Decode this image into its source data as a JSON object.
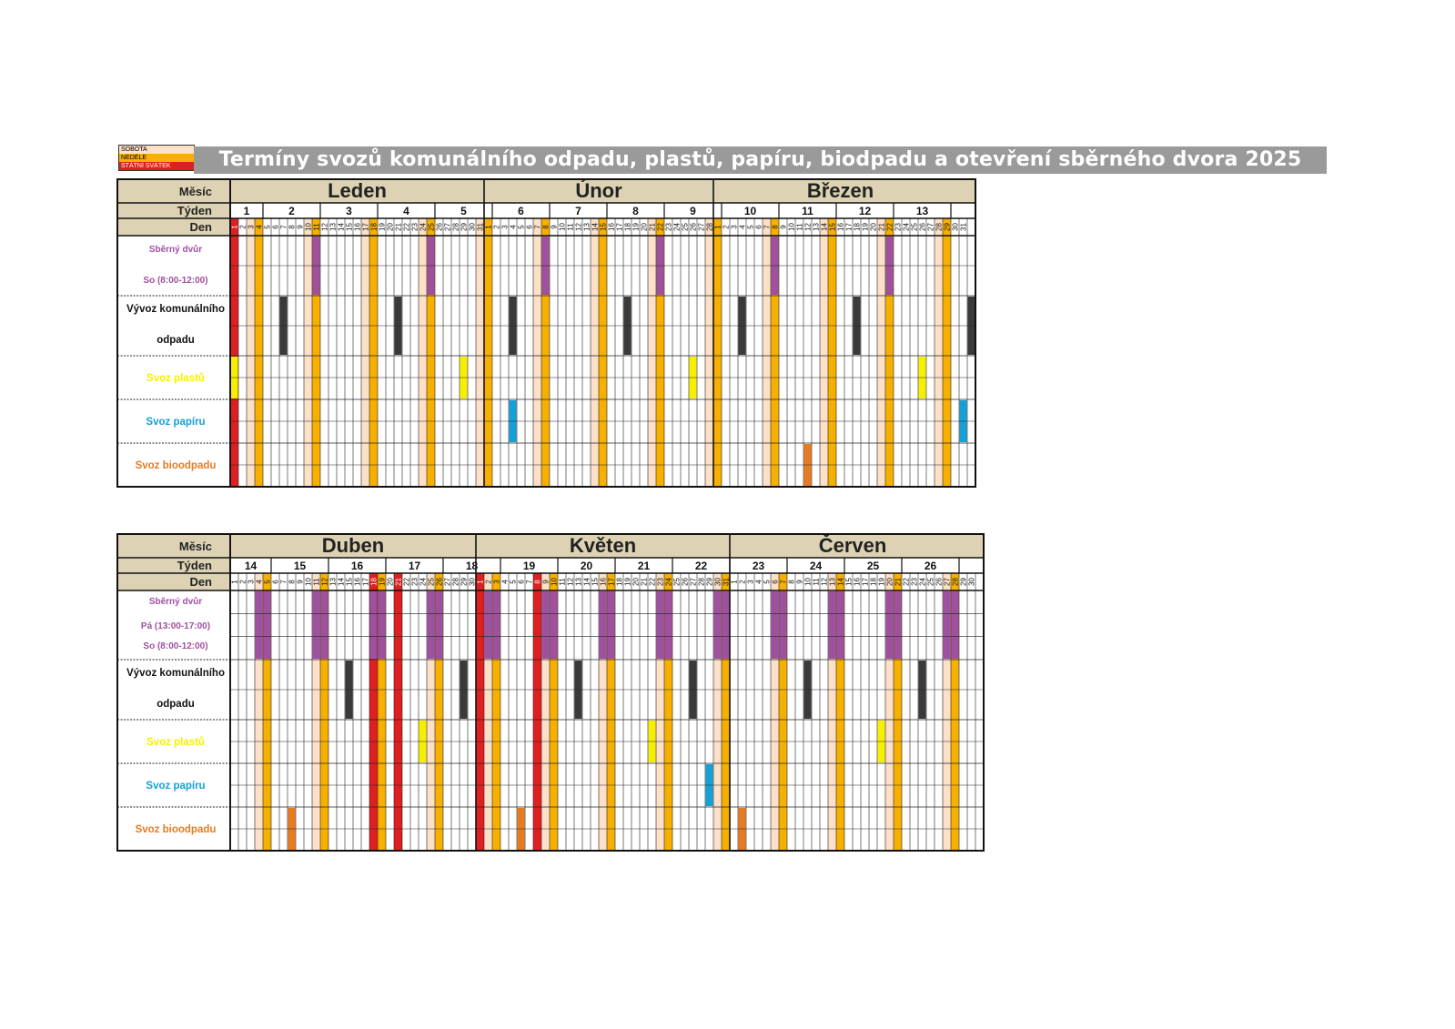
{
  "title": "Termíny svozů komunálního odpadu, plastů, papíru, biodpadu a otevření sběrného dvora 2025",
  "legend": [
    {
      "label": "SOBOTA",
      "color": "#fce0c8",
      "text_color": "#000000"
    },
    {
      "label": "NEDĚLE",
      "color": "#f7b000",
      "text_color": "#000000"
    },
    {
      "label": "STÁTNÍ SVÁTEK",
      "color": "#e02020",
      "text_color": "#ffffff"
    }
  ],
  "colors": {
    "saturday": "#fce0c8",
    "sunday": "#f7b000",
    "holiday": "#e02020",
    "header_bg": "#ddd3b4",
    "sberny_dvur": "#a050a0",
    "komunal": "#3a3a3a",
    "plasty": "#f7ef00",
    "papir": "#16a0d8",
    "bioodpad": "#e87a20"
  },
  "header_labels": {
    "month": "Měsíc",
    "week": "Týden",
    "day": "Den"
  },
  "blocks": [
    {
      "months": [
        {
          "name": "Leden",
          "days": 31,
          "first_weekday": 3,
          "holidays": [
            1
          ]
        },
        {
          "name": "Únor",
          "days": 28,
          "first_weekday": 6,
          "holidays": []
        },
        {
          "name": "Březen",
          "days": 31,
          "first_weekday": 6,
          "holidays": []
        }
      ],
      "weeks": [
        "1",
        "2",
        "3",
        "4",
        "5",
        "6",
        "7",
        "8",
        "9",
        "10",
        "11",
        "12",
        "13",
        ""
      ],
      "rows": [
        {
          "id": "sberny_dvur",
          "label_lines": [
            "Sběrný dvůr",
            "So (8:00-12:00)"
          ],
          "label_color": "#a050a0",
          "height": 66,
          "cells": [
            [
              0,
              11
            ],
            [
              0,
              25
            ],
            [
              1,
              8
            ],
            [
              1,
              22
            ],
            [
              2,
              8
            ],
            [
              2,
              22
            ]
          ]
        },
        {
          "id": "komunal",
          "label_lines": [
            "Vývoz komunálního",
            "odpadu"
          ],
          "label_color": "#111111",
          "height": 66,
          "cells": [
            [
              0,
              7
            ],
            [
              0,
              21
            ],
            [
              1,
              4
            ],
            [
              1,
              18
            ],
            [
              2,
              4
            ],
            [
              2,
              18
            ]
          ],
          "last_col_mark": true
        },
        {
          "id": "plasty",
          "label_lines": [
            "Svoz plastů"
          ],
          "label_color": "#f7ef00",
          "height": 48,
          "cells": [
            [
              0,
              1
            ],
            [
              0,
              29
            ],
            [
              1,
              26
            ],
            [
              2,
              26
            ]
          ]
        },
        {
          "id": "papir",
          "label_lines": [
            "Svoz papíru"
          ],
          "label_color": "#16a0d8",
          "height": 48,
          "cells": [
            [
              1,
              4
            ],
            [
              2,
              31
            ]
          ]
        },
        {
          "id": "bioodpad",
          "label_lines": [
            "Svoz bioodpadu"
          ],
          "label_color": "#e87a20",
          "height": 48,
          "cells": [
            [
              2,
              12
            ]
          ]
        }
      ]
    },
    {
      "months": [
        {
          "name": "Duben",
          "days": 30,
          "first_weekday": 2,
          "holidays": [
            18,
            21
          ]
        },
        {
          "name": "Květen",
          "days": 31,
          "first_weekday": 4,
          "holidays": [
            1,
            8
          ]
        },
        {
          "name": "Červen",
          "days": 30,
          "first_weekday": 0,
          "holidays": []
        }
      ],
      "weeks": [
        "14",
        "15",
        "16",
        "17",
        "18",
        "19",
        "20",
        "21",
        "22",
        "23",
        "24",
        "25",
        "26",
        ""
      ],
      "rows": [
        {
          "id": "sberny_dvur",
          "label_lines": [
            "Sběrný dvůr",
            "Pá (13:00-17:00)",
            "So (8:00-12:00)"
          ],
          "label_color": "#a050a0",
          "height": 76,
          "cells": [
            [
              0,
              4
            ],
            [
              0,
              5
            ],
            [
              0,
              11
            ],
            [
              0,
              12
            ],
            [
              0,
              18
            ],
            [
              0,
              19
            ],
            [
              0,
              25
            ],
            [
              0,
              26
            ],
            [
              1,
              2
            ],
            [
              1,
              3
            ],
            [
              1,
              9
            ],
            [
              1,
              10
            ],
            [
              1,
              16
            ],
            [
              1,
              17
            ],
            [
              1,
              23
            ],
            [
              1,
              24
            ],
            [
              1,
              30
            ],
            [
              1,
              31
            ],
            [
              2,
              6
            ],
            [
              2,
              7
            ],
            [
              2,
              13
            ],
            [
              2,
              14
            ],
            [
              2,
              20
            ],
            [
              2,
              21
            ],
            [
              2,
              27
            ],
            [
              2,
              28
            ]
          ]
        },
        {
          "id": "komunal",
          "label_lines": [
            "Vývoz komunálního",
            "odpadu"
          ],
          "label_color": "#111111",
          "height": 66,
          "cells": [
            [
              0,
              15
            ],
            [
              0,
              29
            ],
            [
              1,
              13
            ],
            [
              1,
              27
            ],
            [
              2,
              10
            ],
            [
              2,
              24
            ]
          ]
        },
        {
          "id": "plasty",
          "label_lines": [
            "Svoz plastů"
          ],
          "label_color": "#f7ef00",
          "height": 48,
          "cells": [
            [
              0,
              24
            ],
            [
              1,
              22
            ],
            [
              2,
              19
            ]
          ]
        },
        {
          "id": "papir",
          "label_lines": [
            "Svoz papíru"
          ],
          "label_color": "#16a0d8",
          "height": 48,
          "cells": [
            [
              1,
              29
            ]
          ]
        },
        {
          "id": "bioodpad",
          "label_lines": [
            "Svoz bioodpadu"
          ],
          "label_color": "#e87a20",
          "height": 48,
          "cells": [
            [
              0,
              8
            ],
            [
              1,
              6
            ],
            [
              2,
              2
            ]
          ]
        }
      ]
    }
  ]
}
